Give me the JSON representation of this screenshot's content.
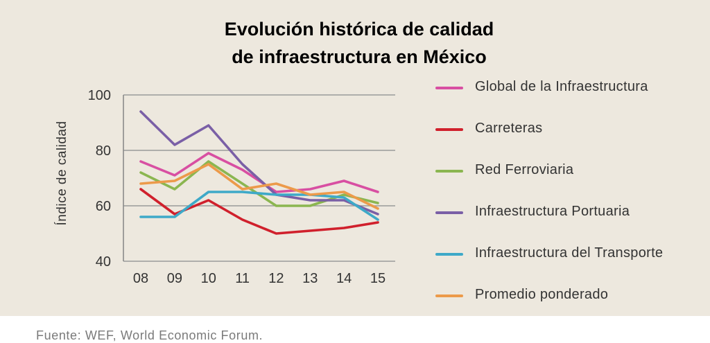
{
  "title_lines": [
    "Evolución histórica de calidad",
    "de infraestructura en México"
  ],
  "source": "Fuente: WEF, World Economic Forum.",
  "chart_data": {
    "type": "line",
    "title": "Evolución histórica de calidad de infraestructura en México",
    "xlabel": "",
    "ylabel": "Índice de calidad",
    "categories": [
      "08",
      "09",
      "10",
      "11",
      "12",
      "13",
      "14",
      "15"
    ],
    "ylim": [
      40,
      100
    ],
    "yticks": [
      40,
      60,
      80,
      100
    ],
    "grid": true,
    "legend_position": "right",
    "series": [
      {
        "name": "Global de la Infraestructura",
        "color": "#d84fa2",
        "values": [
          76,
          71,
          79,
          73,
          65,
          66,
          69,
          65
        ]
      },
      {
        "name": " Carreteras",
        "color": "#d0202c",
        "values": [
          66,
          57,
          62,
          55,
          50,
          51,
          52,
          54
        ]
      },
      {
        "name": "Red Ferroviaria",
        "color": "#8bb650",
        "values": [
          72,
          66,
          76,
          68,
          60,
          60,
          64,
          61
        ]
      },
      {
        "name": "Infraestructura Portuaria",
        "color": "#7a5fa6",
        "values": [
          94,
          82,
          89,
          75,
          64,
          62,
          62,
          57
        ]
      },
      {
        "name": "Infraestructura del Transporte",
        "color": "#3ea9c8",
        "values": [
          56,
          56,
          65,
          65,
          64,
          64,
          63,
          55
        ]
      },
      {
        "name": "Promedio ponderado",
        "color": "#ec9a4a",
        "values": [
          68,
          69,
          75,
          66,
          68,
          64,
          65,
          59
        ]
      }
    ]
  }
}
